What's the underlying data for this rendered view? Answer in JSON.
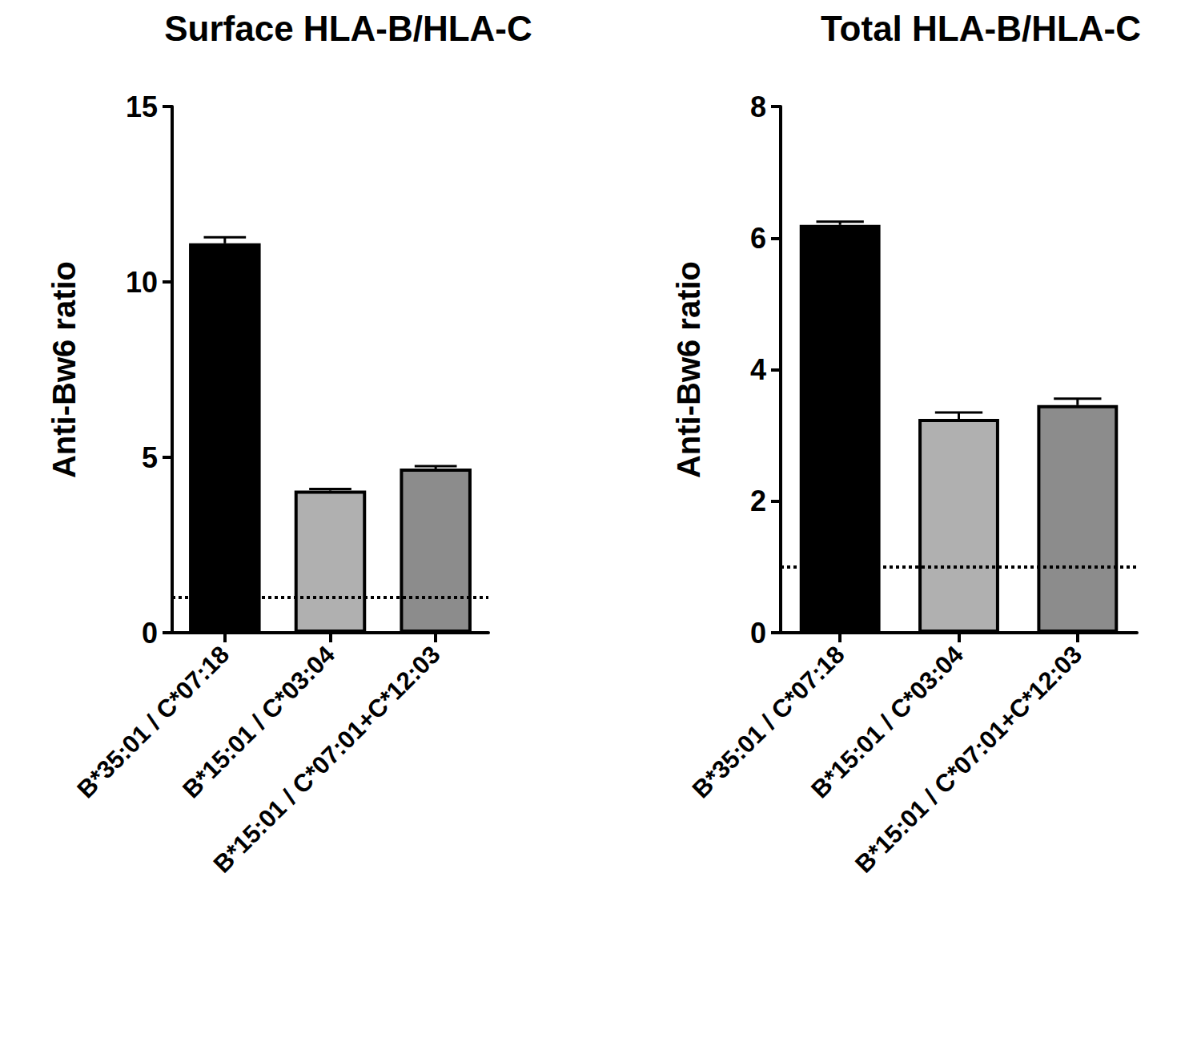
{
  "chart_data": [
    {
      "type": "bar",
      "title": "Surface HLA-B/HLA-C",
      "y_label": "Anti-Bw6 ratio",
      "categories": [
        "B*35:01 / C*07:18",
        "B*15:01 / C*03:04",
        "B*15:01 / C*07:01+C*12:03"
      ],
      "values": [
        11.1,
        4.05,
        4.68
      ],
      "errors": [
        0.17,
        0.05,
        0.07
      ],
      "colors": [
        "#000000",
        "#b0b0b0",
        "#8c8c8c"
      ],
      "reference_line": 1,
      "ylim": [
        0,
        15
      ],
      "yticks": [
        0,
        5,
        10,
        15
      ],
      "grid": false
    },
    {
      "type": "bar",
      "title": "Total HLA-B/HLA-C",
      "y_label": "Anti-Bw6 ratio",
      "categories": [
        "B*35:01 / C*07:18",
        "B*15:01 / C*03:04",
        "B*15:01 / C*07:01+C*12:03"
      ],
      "values": [
        6.2,
        3.25,
        3.46
      ],
      "errors": [
        0.05,
        0.1,
        0.1
      ],
      "colors": [
        "#000000",
        "#b0b0b0",
        "#8c8c8c"
      ],
      "reference_line": 1,
      "ylim": [
        0,
        8
      ],
      "yticks": [
        0,
        2,
        4,
        6,
        8
      ],
      "grid": false
    }
  ]
}
